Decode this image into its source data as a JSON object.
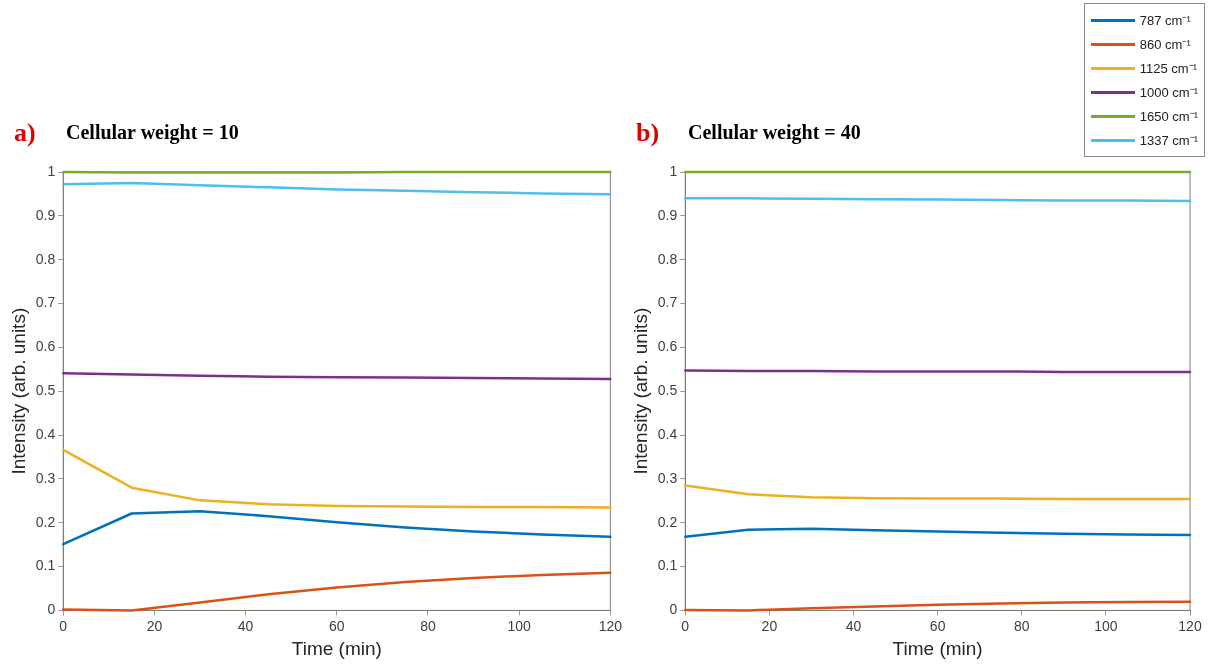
{
  "chart_data": [
    {
      "type": "line",
      "title": "Cellular weight = 10",
      "annotations": [
        "a)"
      ],
      "xlabel": "Time (min)",
      "ylabel": "Intensity (arb. units)",
      "x": [
        0,
        15,
        30,
        45,
        60,
        75,
        90,
        105,
        120
      ],
      "series": [
        {
          "color": "#0072bd",
          "values": [
            0.151,
            0.221,
            0.226,
            0.215,
            0.201,
            0.189,
            0.18,
            0.173,
            0.168
          ]
        },
        {
          "color": "#d95319",
          "values": [
            0.002,
            0.0,
            0.018,
            0.037,
            0.052,
            0.065,
            0.074,
            0.081,
            0.086
          ]
        },
        {
          "color": "#edb120",
          "values": [
            0.366,
            0.28,
            0.251,
            0.242,
            0.238,
            0.237,
            0.236,
            0.236,
            0.235
          ]
        },
        {
          "color": "#7e2f8e",
          "values": [
            0.541,
            0.538,
            0.535,
            0.533,
            0.532,
            0.531,
            0.53,
            0.529,
            0.528
          ]
        },
        {
          "color": "#77ac30",
          "values": [
            1.0,
            0.999,
            0.999,
            0.999,
            0.999,
            1.0,
            1.0,
            1.0,
            1.0
          ]
        },
        {
          "color": "#4dbeee",
          "values": [
            0.972,
            0.975,
            0.97,
            0.965,
            0.96,
            0.957,
            0.954,
            0.951,
            0.949
          ]
        }
      ],
      "xlim": [
        0,
        120
      ],
      "xticks": [
        0,
        20,
        40,
        60,
        80,
        100,
        120
      ],
      "ylim": [
        0,
        1
      ],
      "yticks": [
        0,
        0.1,
        0.2,
        0.3,
        0.4,
        0.5,
        0.6,
        0.7,
        0.8,
        0.9,
        1
      ],
      "grid": false,
      "legend": false,
      "marker": "none",
      "line_style": "solid"
    },
    {
      "type": "line",
      "title": "Cellular weight = 40",
      "annotations": [
        "b)"
      ],
      "xlabel": "Time (min)",
      "ylabel": "Intensity (arb. units)",
      "x": [
        0,
        15,
        30,
        45,
        60,
        75,
        90,
        105,
        120
      ],
      "series": [
        {
          "name": "787 cm⁻¹",
          "color": "#0072bd",
          "values": [
            0.168,
            0.184,
            0.186,
            0.183,
            0.18,
            0.177,
            0.175,
            0.173,
            0.172
          ]
        },
        {
          "name": "860 cm⁻¹",
          "color": "#d95319",
          "values": [
            0.001,
            0.0,
            0.005,
            0.009,
            0.013,
            0.016,
            0.018,
            0.019,
            0.02
          ]
        },
        {
          "name": "1125 cm⁻¹",
          "color": "#edb120",
          "values": [
            0.285,
            0.265,
            0.258,
            0.256,
            0.255,
            0.255,
            0.254,
            0.254,
            0.254
          ]
        },
        {
          "name": "1000 cm⁻¹",
          "color": "#7e2f8e",
          "values": [
            0.547,
            0.546,
            0.546,
            0.545,
            0.545,
            0.545,
            0.544,
            0.544,
            0.544
          ]
        },
        {
          "name": "1650 cm⁻¹",
          "color": "#77ac30",
          "values": [
            1.0,
            1.0,
            1.0,
            1.0,
            1.0,
            1.0,
            1.0,
            1.0,
            1.0
          ]
        },
        {
          "name": "1337 cm⁻¹",
          "color": "#4dbeee",
          "values": [
            0.94,
            0.94,
            0.939,
            0.938,
            0.937,
            0.936,
            0.935,
            0.935,
            0.934
          ]
        }
      ],
      "xlim": [
        0,
        120
      ],
      "xticks": [
        0,
        20,
        40,
        60,
        80,
        100,
        120
      ],
      "ylim": [
        0,
        1
      ],
      "yticks": [
        0,
        0.1,
        0.2,
        0.3,
        0.4,
        0.5,
        0.6,
        0.7,
        0.8,
        0.9,
        1
      ],
      "grid": false,
      "legend": "top right",
      "marker": "none",
      "line_style": "solid"
    }
  ]
}
